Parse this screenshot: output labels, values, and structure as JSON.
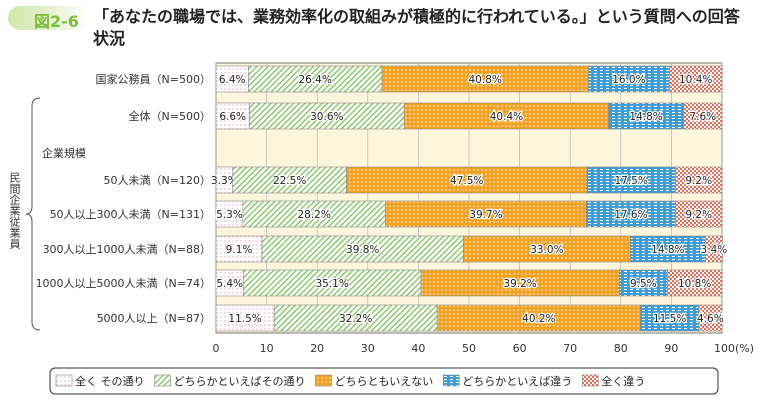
{
  "figure": {
    "number": "図2-6",
    "title": "「あなたの職場では、業務効率化の取組みが積極的に行われている。」という質問への回答状況"
  },
  "group_label": "民間企業従業員",
  "subheading": "企業規模",
  "chart_data": {
    "type": "bar",
    "orientation": "horizontal",
    "stacked": true,
    "title": "「あなたの職場では、業務効率化の取組みが積極的に行われている。」という質問への回答状況",
    "categories": [
      "国家公務員（N=500）",
      "全体（N=500）",
      "50人未満（N=120）",
      "50人以上300人未満（N=131）",
      "300人以上1000人未満（N=88）",
      "1000人以上5000人未満（N=74）",
      "5000人以上（N=87）"
    ],
    "series": [
      {
        "name": "全く その通り",
        "color": "#f29ac0",
        "values": [
          6.4,
          6.6,
          3.3,
          5.3,
          9.1,
          5.4,
          11.5
        ]
      },
      {
        "name": "どちらかといえばその通り",
        "color": "#7cc35a",
        "values": [
          26.4,
          30.6,
          22.5,
          28.2,
          39.8,
          35.1,
          32.2
        ]
      },
      {
        "name": "どちらともいえない",
        "color": "#f4a020",
        "values": [
          40.8,
          40.4,
          47.5,
          39.7,
          33.0,
          39.2,
          40.2
        ]
      },
      {
        "name": "どちらかといえば違う",
        "color": "#3e9fd8",
        "values": [
          16.0,
          14.8,
          17.5,
          17.6,
          14.8,
          9.5,
          11.5
        ]
      },
      {
        "name": "全く違う",
        "color": "#ee6a55",
        "values": [
          10.4,
          7.6,
          9.2,
          9.2,
          3.4,
          10.8,
          4.6
        ]
      }
    ],
    "xlim": [
      0,
      100
    ],
    "xticks": [
      "0",
      "10",
      "20",
      "30",
      "40",
      "50",
      "60",
      "70",
      "80",
      "90",
      "100(%)"
    ],
    "legend": "bottom",
    "grid": true
  }
}
